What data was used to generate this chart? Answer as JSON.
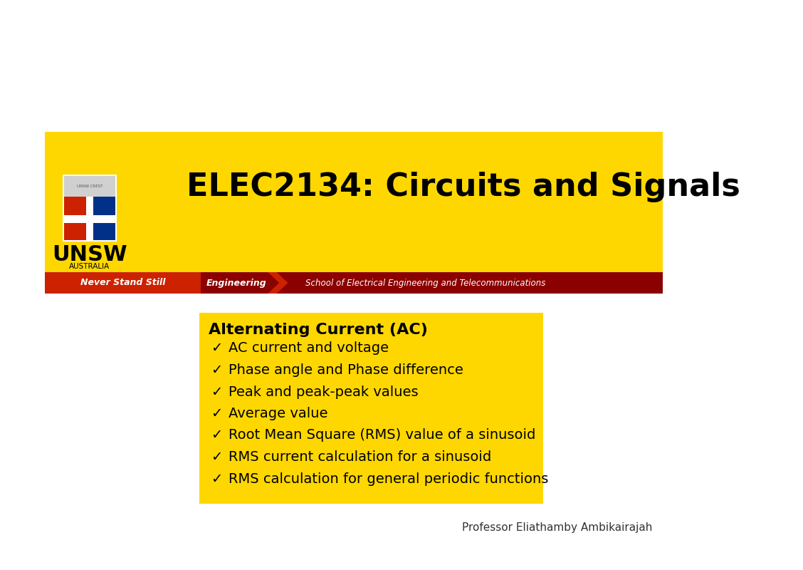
{
  "bg_color": "#ffffff",
  "header_bg": "#FFD700",
  "header_title": "ELEC2134: Circuits and Signals",
  "header_title_color": "#000000",
  "header_title_fontsize": 32,
  "navbar_left_bg": "#CC2200",
  "navbar_right_bg": "#8B0000",
  "navbar_text1": "Never Stand Still",
  "navbar_text2": "Engineering",
  "navbar_text3": "School of Electrical Engineering and Telecommunications",
  "navbar_text_color": "#ffffff",
  "content_bg": "#FFD700",
  "content_title": "Alternating Current (AC)",
  "content_title_fontsize": 16,
  "content_items": [
    "AC current and voltage",
    "Phase angle and Phase difference",
    "Peak and peak-peak values",
    "Average value",
    "Root Mean Square (RMS) value of a sinusoid",
    "RMS current calculation for a sinusoid",
    "RMS calculation for general periodic functions"
  ],
  "content_item_fontsize": 14,
  "footer_text": "Professor Eliathamby Ambikairajah",
  "footer_fontsize": 11,
  "unsw_text": "UNSW",
  "unsw_sub": "AUSTRALIA",
  "checkmark": "✓"
}
